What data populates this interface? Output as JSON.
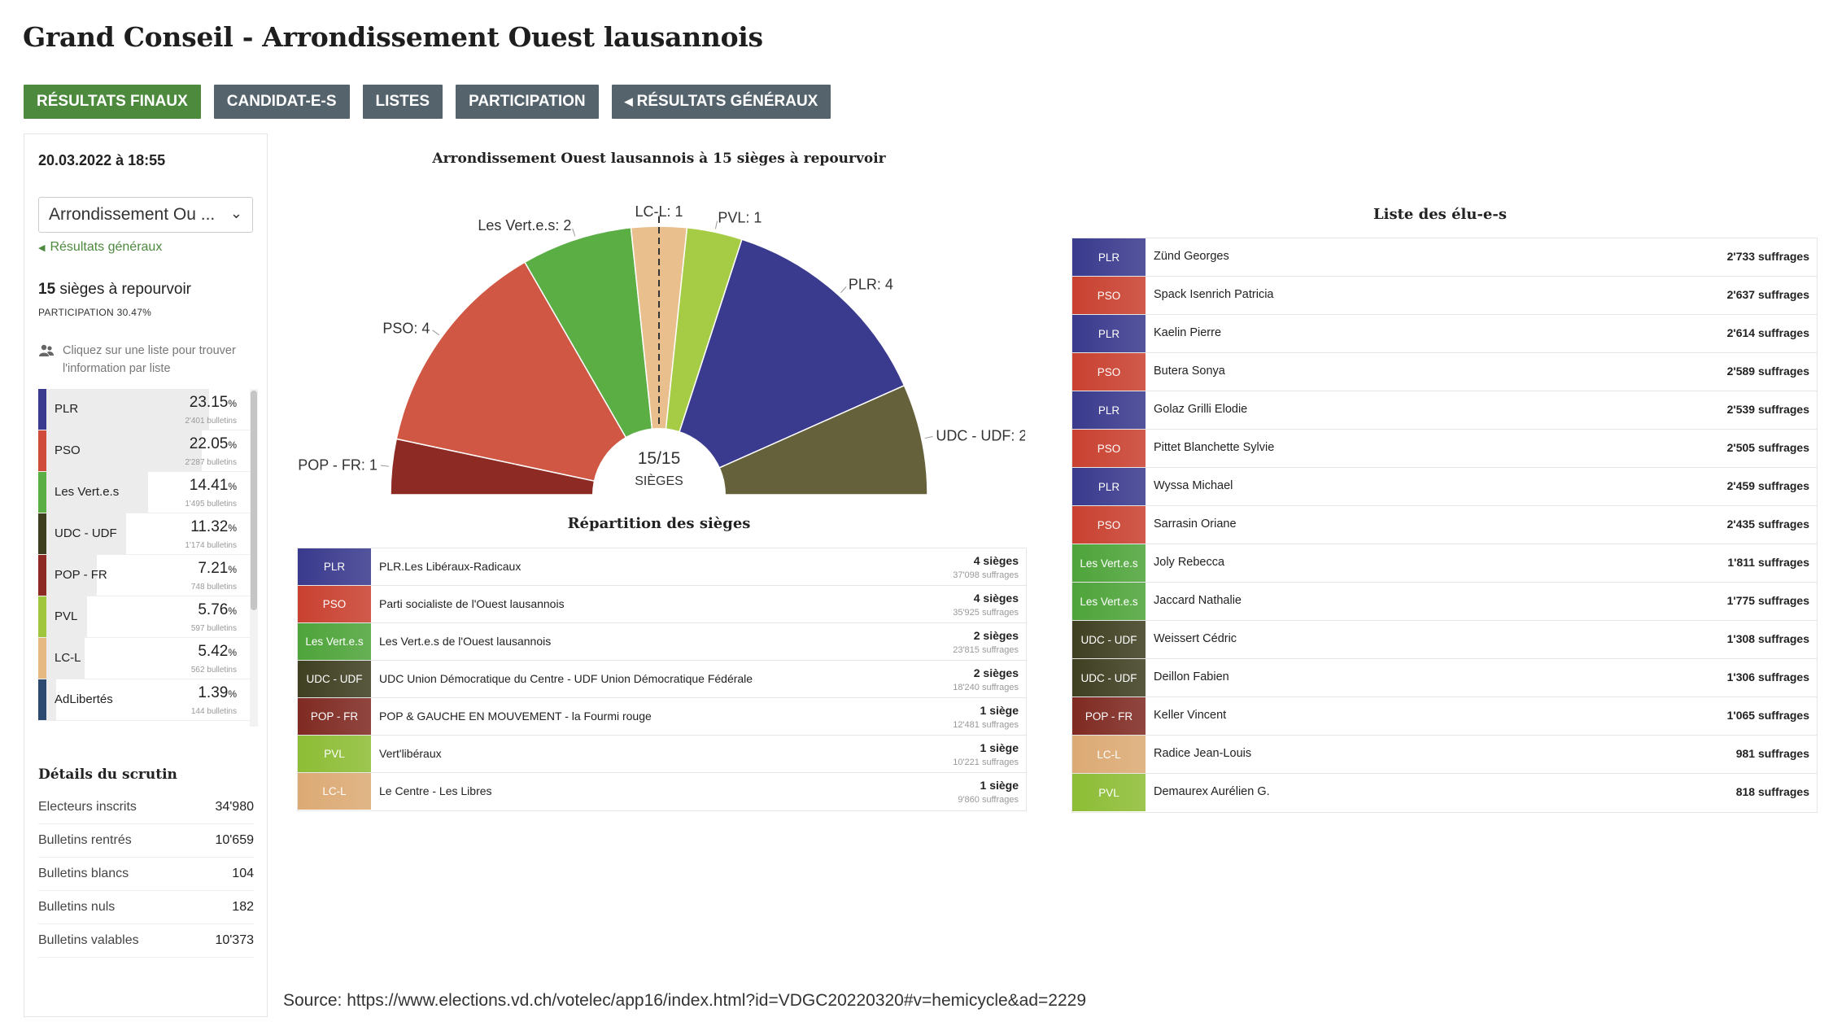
{
  "page": {
    "title": "Grand Conseil - Arrondissement Ouest lausannois",
    "source": "Source: https://www.elections.vd.ch/votelec/app16/index.html?id=VDGC20220320#v=hemicycle&ad=2229"
  },
  "tabs": [
    {
      "label": "RÉSULTATS FINAUX",
      "active": true
    },
    {
      "label": "CANDIDAT-E-S",
      "active": false
    },
    {
      "label": "LISTES",
      "active": false
    },
    {
      "label": "PARTICIPATION",
      "active": false
    },
    {
      "label": "RÉSULTATS GÉNÉRAUX",
      "active": false,
      "icon": "chevron-left-icon"
    }
  ],
  "sidebar": {
    "date": "20.03.2022 à 18:55",
    "select_value": "Arrondissement Ou ...",
    "back_link": "Résultats généraux",
    "seats_number": "15",
    "seats_text": " sièges à repourvoir",
    "participation": "PARTICIPATION 30.47%",
    "hint": "Cliquez sur une liste pour trouver l'information par liste",
    "parties": [
      {
        "name": "PLR",
        "pct": "23.15",
        "pct_value": 23.15,
        "votes": "2'401 bulletins",
        "color": "#3a3a8e"
      },
      {
        "name": "PSO",
        "pct": "22.05",
        "pct_value": 22.05,
        "votes": "2'287 bulletins",
        "color": "#d14b3a"
      },
      {
        "name": "Les Vert.e.s",
        "pct": "14.41",
        "pct_value": 14.41,
        "votes": "1'495 bulletins",
        "color": "#5aae44"
      },
      {
        "name": "UDC - UDF",
        "pct": "11.32",
        "pct_value": 11.32,
        "votes": "1'174 bulletins",
        "color": "#3d3d1f"
      },
      {
        "name": "POP - FR",
        "pct": "7.21",
        "pct_value": 7.21,
        "votes": "748 bulletins",
        "color": "#8c2a23"
      },
      {
        "name": "PVL",
        "pct": "5.76",
        "pct_value": 5.76,
        "votes": "597 bulletins",
        "color": "#9fc63c"
      },
      {
        "name": "LC-L",
        "pct": "5.42",
        "pct_value": 5.42,
        "votes": "562 bulletins",
        "color": "#e7b982"
      },
      {
        "name": "AdLibertés",
        "pct": "1.39",
        "pct_value": 1.39,
        "votes": "144 bulletins",
        "color": "#2c4a70"
      }
    ],
    "pct_sign": "%",
    "details_title": "Détails du scrutin",
    "details": [
      {
        "label": "Electeurs inscrits",
        "value": "34'980"
      },
      {
        "label": "Bulletins rentrés",
        "value": "10'659"
      },
      {
        "label": "Bulletins blancs",
        "value": "104"
      },
      {
        "label": "Bulletins nuls",
        "value": "182"
      },
      {
        "label": "Bulletins valables",
        "value": "10'373"
      }
    ]
  },
  "hemicycle": {
    "title": "Arrondissement Ouest lausannois à 15 sièges à repourvoir",
    "center_count": "15/15",
    "center_label": "SIÈGES",
    "slices": [
      {
        "label": "POP - FR: 1",
        "seats": 1,
        "color": "#8c2a23"
      },
      {
        "label": "PSO: 4",
        "seats": 4,
        "color": "#d05744"
      },
      {
        "label": "Les Vert.e.s: 2",
        "seats": 2,
        "color": "#5aae44"
      },
      {
        "label": "LC-L: 1",
        "seats": 1,
        "color": "#e9c08d"
      },
      {
        "label": "PVL: 1",
        "seats": 1,
        "color": "#a6cb45"
      },
      {
        "label": "PLR: 4",
        "seats": 4,
        "color": "#3a3a8e"
      },
      {
        "label": "UDC - UDF: 2",
        "seats": 2,
        "color": "#65613a"
      }
    ]
  },
  "repartition": {
    "title": "Répartition des sièges",
    "rows": [
      {
        "badge": "PLR",
        "full": "PLR.Les Libéraux-Radicaux",
        "seats": "4 sièges",
        "suffrages": "37'098 suffrages",
        "color": "#3a3a8e"
      },
      {
        "badge": "PSO",
        "full": "Parti socialiste de l'Ouest lausannois",
        "seats": "4 sièges",
        "suffrages": "35'925 suffrages",
        "color": "#c94130"
      },
      {
        "badge": "Les Vert.e.s",
        "full": "Les Vert.e.s de l'Ouest lausannois",
        "seats": "2 sièges",
        "suffrages": "23'815 suffrages",
        "color": "#4ea43a"
      },
      {
        "badge": "UDC - UDF",
        "full": "UDC Union Démocratique du Centre - UDF Union Démocratique Fédérale",
        "seats": "2 sièges",
        "suffrages": "18'240 suffrages",
        "color": "#3f3f22"
      },
      {
        "badge": "POP - FR",
        "full": "POP & GAUCHE EN MOUVEMENT - la Fourmi rouge",
        "seats": "1 siège",
        "suffrages": "12'481 suffrages",
        "color": "#7f2a22"
      },
      {
        "badge": "PVL",
        "full": "Vert'libéraux",
        "seats": "1 siège",
        "suffrages": "10'221 suffrages",
        "color": "#8dbd35"
      },
      {
        "badge": "LC-L",
        "full": "Le Centre - Les Libres",
        "seats": "1 siège",
        "suffrages": "9'860 suffrages",
        "color": "#dcaa74"
      }
    ]
  },
  "elus": {
    "title": "Liste des élu-e-s",
    "rows": [
      {
        "badge": "PLR",
        "name": "Zünd Georges",
        "votes": "2'733 suffrages",
        "color": "#3a3a8e"
      },
      {
        "badge": "PSO",
        "name": "Spack Isenrich Patricia",
        "votes": "2'637 suffrages",
        "color": "#c94130"
      },
      {
        "badge": "PLR",
        "name": "Kaelin Pierre",
        "votes": "2'614 suffrages",
        "color": "#3a3a8e"
      },
      {
        "badge": "PSO",
        "name": "Butera Sonya",
        "votes": "2'589 suffrages",
        "color": "#c94130"
      },
      {
        "badge": "PLR",
        "name": "Golaz Grilli Elodie",
        "votes": "2'539 suffrages",
        "color": "#3a3a8e"
      },
      {
        "badge": "PSO",
        "name": "Pittet Blanchette Sylvie",
        "votes": "2'505 suffrages",
        "color": "#c94130"
      },
      {
        "badge": "PLR",
        "name": "Wyssa Michael",
        "votes": "2'459 suffrages",
        "color": "#3a3a8e"
      },
      {
        "badge": "PSO",
        "name": "Sarrasin Oriane",
        "votes": "2'435 suffrages",
        "color": "#c94130"
      },
      {
        "badge": "Les Vert.e.s",
        "name": "Joly Rebecca",
        "votes": "1'811 suffrages",
        "color": "#4ea43a"
      },
      {
        "badge": "Les Vert.e.s",
        "name": "Jaccard Nathalie",
        "votes": "1'775 suffrages",
        "color": "#4ea43a"
      },
      {
        "badge": "UDC - UDF",
        "name": "Weissert Cédric",
        "votes": "1'308 suffrages",
        "color": "#3f3f22"
      },
      {
        "badge": "UDC - UDF",
        "name": "Deillon Fabien",
        "votes": "1'306 suffrages",
        "color": "#3f3f22"
      },
      {
        "badge": "POP - FR",
        "name": "Keller Vincent",
        "votes": "1'065 suffrages",
        "color": "#7f2a22"
      },
      {
        "badge": "LC-L",
        "name": "Radice Jean-Louis",
        "votes": "981 suffrages",
        "color": "#dcaa74"
      },
      {
        "badge": "PVL",
        "name": "Demaurex Aurélien G.",
        "votes": "818 suffrages",
        "color": "#8dbd35"
      }
    ]
  },
  "chart_data": {
    "type": "pie",
    "subtype": "hemicycle",
    "title": "Arrondissement Ouest lausannois à 15 sièges à repourvoir",
    "categories": [
      "POP - FR",
      "PSO",
      "Les Vert.e.s",
      "LC-L",
      "PVL",
      "PLR",
      "UDC - UDF"
    ],
    "values": [
      1,
      4,
      2,
      1,
      1,
      4,
      2
    ],
    "total": 15
  }
}
